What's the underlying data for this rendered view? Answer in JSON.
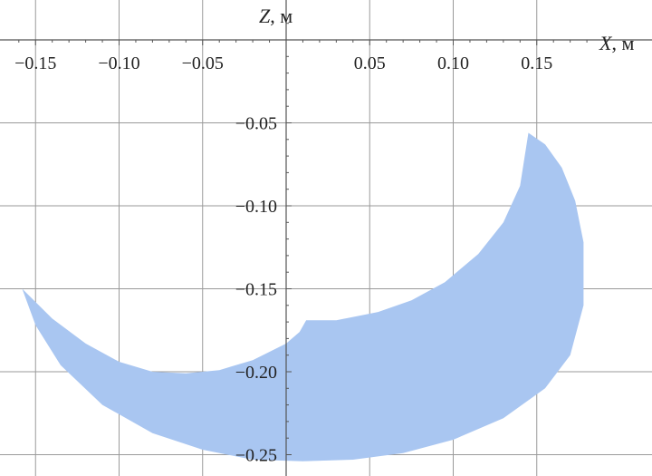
{
  "chart_data": {
    "type": "area",
    "title": "",
    "xlabel": {
      "var": "X",
      "unit": ", м"
    },
    "ylabel": {
      "var": "Z",
      "unit": ", м"
    },
    "xlim": [
      -0.165,
      0.185
    ],
    "ylim": [
      -0.255,
      0.022
    ],
    "grid": true,
    "x_ticks": [
      {
        "value": -0.15,
        "label": "−0.15"
      },
      {
        "value": -0.1,
        "label": "−0.10"
      },
      {
        "value": -0.05,
        "label": "−0.05"
      },
      {
        "value": 0.05,
        "label": "0.05"
      },
      {
        "value": 0.1,
        "label": "0.10"
      },
      {
        "value": 0.15,
        "label": "0.15"
      }
    ],
    "y_ticks": [
      {
        "value": -0.05,
        "label": "−0.05"
      },
      {
        "value": -0.1,
        "label": "−0.10"
      },
      {
        "value": -0.15,
        "label": "−0.15"
      },
      {
        "value": -0.2,
        "label": "−0.20"
      },
      {
        "value": -0.25,
        "label": "−0.25"
      }
    ],
    "x_gridlines": [
      -0.15,
      -0.1,
      -0.05,
      0.0,
      0.05,
      0.1,
      0.15
    ],
    "y_gridlines": [
      -0.05,
      -0.1,
      -0.15,
      -0.2,
      -0.25
    ],
    "fill_color": "#a9c6f1",
    "region": {
      "upper_boundary": [
        {
          "x": -0.158,
          "z": -0.15
        },
        {
          "x": -0.14,
          "z": -0.168
        },
        {
          "x": -0.12,
          "z": -0.183
        },
        {
          "x": -0.1,
          "z": -0.194
        },
        {
          "x": -0.08,
          "z": -0.2
        },
        {
          "x": -0.06,
          "z": -0.201
        },
        {
          "x": -0.04,
          "z": -0.199
        },
        {
          "x": -0.02,
          "z": -0.193
        },
        {
          "x": 0.0,
          "z": -0.183
        },
        {
          "x": 0.008,
          "z": -0.176
        },
        {
          "x": 0.012,
          "z": -0.169
        },
        {
          "x": 0.03,
          "z": -0.169
        },
        {
          "x": 0.055,
          "z": -0.164
        },
        {
          "x": 0.075,
          "z": -0.157
        },
        {
          "x": 0.095,
          "z": -0.146
        },
        {
          "x": 0.115,
          "z": -0.129
        },
        {
          "x": 0.13,
          "z": -0.11
        },
        {
          "x": 0.14,
          "z": -0.088
        },
        {
          "x": 0.145,
          "z": -0.056
        }
      ],
      "lower_boundary": [
        {
          "x": 0.145,
          "z": -0.056
        },
        {
          "x": 0.155,
          "z": -0.063
        },
        {
          "x": 0.165,
          "z": -0.077
        },
        {
          "x": 0.173,
          "z": -0.097
        },
        {
          "x": 0.178,
          "z": -0.122
        },
        {
          "x": 0.178,
          "z": -0.16
        },
        {
          "x": 0.17,
          "z": -0.19
        },
        {
          "x": 0.155,
          "z": -0.21
        },
        {
          "x": 0.13,
          "z": -0.228
        },
        {
          "x": 0.1,
          "z": -0.241
        },
        {
          "x": 0.07,
          "z": -0.249
        },
        {
          "x": 0.04,
          "z": -0.253
        },
        {
          "x": 0.01,
          "z": -0.254
        },
        {
          "x": -0.02,
          "z": -0.253
        },
        {
          "x": -0.05,
          "z": -0.247
        },
        {
          "x": -0.08,
          "z": -0.237
        },
        {
          "x": -0.11,
          "z": -0.22
        },
        {
          "x": -0.135,
          "z": -0.196
        },
        {
          "x": -0.15,
          "z": -0.172
        },
        {
          "x": -0.158,
          "z": -0.15
        }
      ]
    }
  }
}
